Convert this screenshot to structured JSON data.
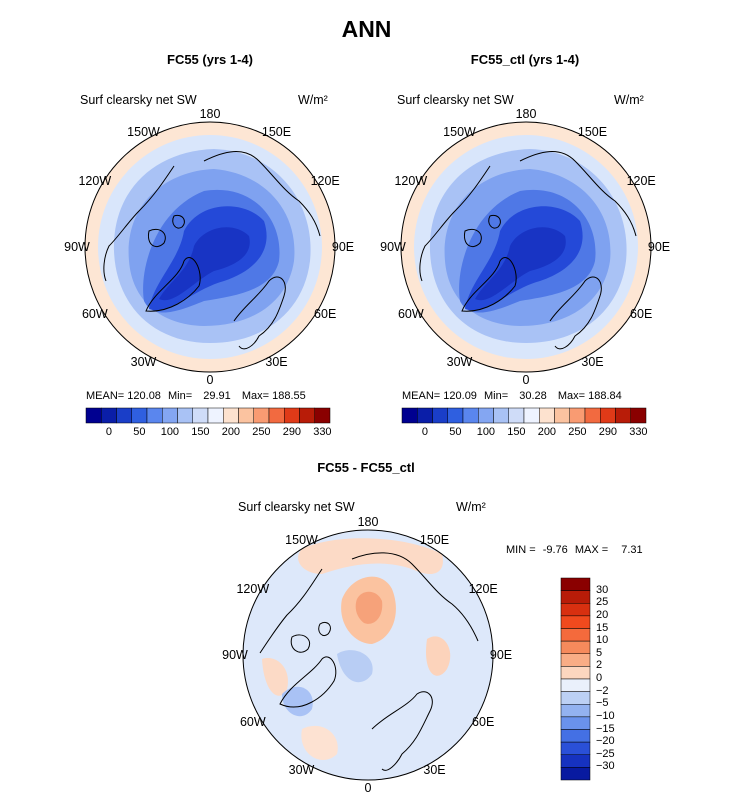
{
  "figure": {
    "title": "ANN",
    "colors": {
      "land_outline": "#000000",
      "background": "#ffffff"
    }
  },
  "chart_data": [
    {
      "type": "heatmap",
      "projection": "north-polar-stereographic",
      "title": "FC55 (yrs 1-4)",
      "variable": "Surf clearsky net SW",
      "units": "W/m²",
      "longitude_labels": [
        "180",
        "150E",
        "120E",
        "90E",
        "60E",
        "30E",
        "0",
        "30W",
        "60W",
        "90W",
        "120W",
        "150W"
      ],
      "stats": {
        "mean_label": "MEAN=",
        "mean": "120.08",
        "min_label": "Min=",
        "min": "29.91",
        "max_label": "Max=",
        "max": "188.55"
      },
      "colorbar": {
        "orientation": "horizontal",
        "tick_labels": [
          "0",
          "50",
          "100",
          "150",
          "200",
          "250",
          "290",
          "330"
        ],
        "colors": [
          "#000090",
          "#0a1ea8",
          "#1a3ec8",
          "#2f5fe0",
          "#5a86ee",
          "#84a6f2",
          "#a9c2f5",
          "#cfdcf8",
          "#eef3ff",
          "#fde2cf",
          "#fbc3a0",
          "#f99b72",
          "#f26a40",
          "#e03a18",
          "#b81c08",
          "#8a0000"
        ]
      }
    },
    {
      "type": "heatmap",
      "projection": "north-polar-stereographic",
      "title": "FC55_ctl (yrs 1-4)",
      "variable": "Surf clearsky net SW",
      "units": "W/m²",
      "longitude_labels": [
        "180",
        "150E",
        "120E",
        "90E",
        "60E",
        "30E",
        "0",
        "30W",
        "60W",
        "90W",
        "120W",
        "150W"
      ],
      "stats": {
        "mean_label": "MEAN=",
        "mean": "120.09",
        "min_label": "Min=",
        "min": "30.28",
        "max_label": "Max=",
        "max": "188.84"
      },
      "colorbar": {
        "orientation": "horizontal",
        "tick_labels": [
          "0",
          "50",
          "100",
          "150",
          "200",
          "250",
          "290",
          "330"
        ],
        "colors": [
          "#000090",
          "#0a1ea8",
          "#1a3ec8",
          "#2f5fe0",
          "#5a86ee",
          "#84a6f2",
          "#a9c2f5",
          "#cfdcf8",
          "#eef3ff",
          "#fde2cf",
          "#fbc3a0",
          "#f99b72",
          "#f26a40",
          "#e03a18",
          "#b81c08",
          "#8a0000"
        ]
      }
    },
    {
      "type": "heatmap",
      "projection": "north-polar-stereographic",
      "title": "FC55 - FC55_ctl",
      "variable": "Surf clearsky net SW",
      "units": "W/m²",
      "longitude_labels": [
        "180",
        "150E",
        "120E",
        "90E",
        "60E",
        "30E",
        "0",
        "30W",
        "60W",
        "90W",
        "120W",
        "150W"
      ],
      "stats": {
        "min_label": "MIN =",
        "min": "-9.76",
        "max_label": "MAX =",
        "max": "7.31"
      },
      "colorbar": {
        "orientation": "vertical",
        "tick_labels_top_to_bottom": [
          "30",
          "25",
          "20",
          "15",
          "10",
          "5",
          "2",
          "0",
          "−2",
          "−5",
          "−10",
          "−15",
          "−20",
          "−25",
          "−30"
        ],
        "colors_top_to_bottom": [
          "#8a0000",
          "#b81c08",
          "#d83010",
          "#f04a1e",
          "#f46a3c",
          "#f68a5c",
          "#f9ad86",
          "#fcd6bf",
          "#eaf0fb",
          "#bcd0f4",
          "#93b2f0",
          "#6a92ec",
          "#4470e4",
          "#2a50d8",
          "#1632c0",
          "#081aa0"
        ]
      }
    }
  ]
}
